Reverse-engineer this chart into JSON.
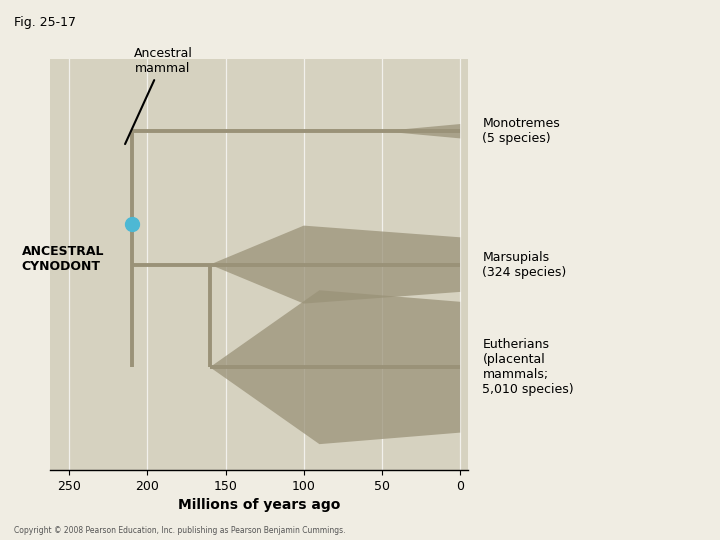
{
  "fig_label": "Fig. 25-17",
  "background_color": "#f0ede3",
  "panel_color": "#d6d2c0",
  "panel_bg": "#ccc9b5",
  "tree_color": "#9a9278",
  "tree_linewidth": 2.8,
  "xlabel": "Millions of years ago",
  "xticks": [
    0,
    50,
    100,
    150,
    200,
    250
  ],
  "xlim": [
    262,
    -5
  ],
  "ylim": [
    0.0,
    4.0
  ],
  "cynodont_dot_color": "#4db8d4",
  "cynodont_dot_size": 10,
  "branch_points": {
    "cynodont_x": 210,
    "monotreme_y": 3.3,
    "cynodont_y": 2.4,
    "marsupial_y": 2.0,
    "eutherian_y": 1.0,
    "mammal_split_x": 180,
    "me_split_x": 160
  },
  "wedge_color": "#9a9278",
  "wedge_alpha": 0.75,
  "labels": {
    "monotremes": "Monotremes\n(5 species)",
    "marsupials": "Marsupials\n(324 species)",
    "eutherians": "Eutherians\n(placental\nmammals;\n5,010 species)",
    "ancestral_mammal": "Ancestral\nmammal",
    "ancestral_cynodont": "ANCESTRAL\nCYNODONT"
  },
  "copyright": "Copyright © 2008 Pearson Education, Inc. publishing as Pearson Benjamin Cummings."
}
